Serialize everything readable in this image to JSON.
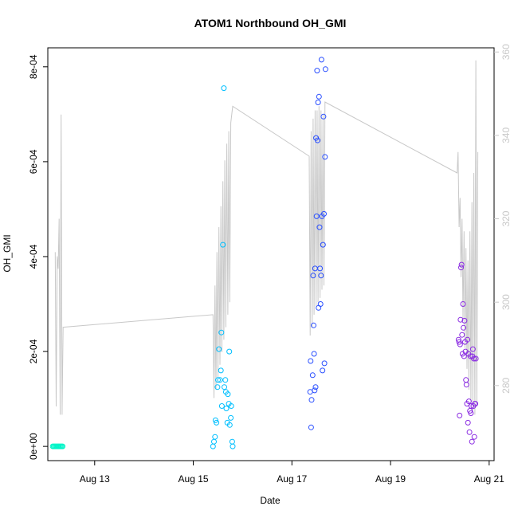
{
  "chart_data": {
    "type": "scatter",
    "title": "ATOM1 Northbound OH_GMI",
    "xlabel": "Date",
    "ylabel": "OH_GMI",
    "x_ticks": [
      {
        "day": 13,
        "label": "Aug 13"
      },
      {
        "day": 15,
        "label": "Aug 15"
      },
      {
        "day": 17,
        "label": "Aug 17"
      },
      {
        "day": 19,
        "label": "Aug 19"
      },
      {
        "day": 21,
        "label": "Aug 21"
      }
    ],
    "xlim": [
      12.05,
      21.1
    ],
    "ylim": [
      -3e-05,
      0.00084
    ],
    "y_ticks": [
      {
        "value": 0,
        "label": "0e+00"
      },
      {
        "value": 0.0002,
        "label": "2e-04"
      },
      {
        "value": 0.0004,
        "label": "4e-04"
      },
      {
        "value": 0.0006,
        "label": "6e-04"
      },
      {
        "value": 0.0008,
        "label": "8e-04"
      }
    ],
    "y2lim": [
      262,
      361
    ],
    "y2_ticks": [
      {
        "value": 280,
        "label": "280"
      },
      {
        "value": 300,
        "label": "300"
      },
      {
        "value": 320,
        "label": "320"
      },
      {
        "value": 340,
        "label": "340"
      },
      {
        "value": 360,
        "label": "360"
      }
    ],
    "secondary_line": {
      "color": "#c8c8c8",
      "points": [
        [
          12.2,
          312
        ],
        [
          12.22,
          275
        ],
        [
          12.24,
          311
        ],
        [
          12.26,
          308
        ],
        [
          12.28,
          320
        ],
        [
          12.3,
          273
        ],
        [
          12.32,
          345
        ],
        [
          12.34,
          273
        ],
        [
          12.36,
          294
        ],
        [
          15.4,
          297
        ],
        [
          15.42,
          277
        ],
        [
          15.44,
          304
        ],
        [
          15.46,
          279
        ],
        [
          15.48,
          312
        ],
        [
          15.5,
          282
        ],
        [
          15.52,
          318
        ],
        [
          15.54,
          285
        ],
        [
          15.56,
          323
        ],
        [
          15.58,
          288
        ],
        [
          15.6,
          329
        ],
        [
          15.62,
          291
        ],
        [
          15.64,
          334
        ],
        [
          15.66,
          294
        ],
        [
          15.68,
          338
        ],
        [
          15.7,
          297
        ],
        [
          15.72,
          341
        ],
        [
          15.74,
          300
        ],
        [
          15.76,
          343
        ],
        [
          15.78,
          345
        ],
        [
          15.8,
          347
        ],
        [
          17.35,
          335
        ],
        [
          17.37,
          292
        ],
        [
          17.39,
          341
        ],
        [
          17.41,
          294
        ],
        [
          17.43,
          344
        ],
        [
          17.45,
          297
        ],
        [
          17.47,
          346
        ],
        [
          17.49,
          299
        ],
        [
          17.51,
          346
        ],
        [
          17.53,
          300
        ],
        [
          17.55,
          347
        ],
        [
          17.57,
          301
        ],
        [
          17.59,
          346
        ],
        [
          17.61,
          303
        ],
        [
          17.63,
          345
        ],
        [
          17.65,
          304
        ],
        [
          17.67,
          348
        ],
        [
          20.35,
          331
        ],
        [
          20.37,
          336
        ],
        [
          20.39,
          318
        ],
        [
          20.41,
          325
        ],
        [
          20.43,
          306
        ],
        [
          20.45,
          320
        ],
        [
          20.47,
          296
        ],
        [
          20.49,
          317
        ],
        [
          20.51,
          289
        ],
        [
          20.53,
          313
        ],
        [
          20.55,
          284
        ],
        [
          20.57,
          310
        ],
        [
          20.59,
          279
        ],
        [
          20.61,
          317
        ],
        [
          20.63,
          276
        ],
        [
          20.65,
          324
        ],
        [
          20.67,
          274
        ],
        [
          20.69,
          331
        ],
        [
          20.71,
          273
        ],
        [
          20.73,
          358
        ],
        [
          20.75,
          275
        ],
        [
          20.77,
          336
        ]
      ]
    },
    "series": [
      {
        "color": "#00f5c8",
        "points": [
          [
            12.15,
            0
          ],
          [
            12.17,
            0
          ],
          [
            12.19,
            0
          ],
          [
            12.21,
            0
          ],
          [
            12.23,
            0
          ],
          [
            12.25,
            0
          ],
          [
            12.27,
            0
          ],
          [
            12.29,
            0
          ],
          [
            12.31,
            0
          ],
          [
            12.33,
            0
          ],
          [
            12.35,
            0
          ]
        ]
      },
      {
        "color": "#00bfff",
        "points": [
          [
            15.4,
            0
          ],
          [
            15.42,
            1e-05
          ],
          [
            15.44,
            2e-05
          ],
          [
            15.45,
            5.5e-05
          ],
          [
            15.47,
            5e-05
          ],
          [
            15.49,
            0.000125
          ],
          [
            15.5,
            0.00014
          ],
          [
            15.52,
            0.000205
          ],
          [
            15.54,
            0.00014
          ],
          [
            15.56,
            0.00016
          ],
          [
            15.57,
            0.00024
          ],
          [
            15.58,
            8.5e-05
          ],
          [
            15.6,
            0.000425
          ],
          [
            15.62,
            0.000755
          ],
          [
            15.63,
            0.000125
          ],
          [
            15.65,
            0.00014
          ],
          [
            15.66,
            0.000115
          ],
          [
            15.67,
            8e-05
          ],
          [
            15.69,
            5e-05
          ],
          [
            15.7,
            0.00011
          ],
          [
            15.72,
            9e-05
          ],
          [
            15.73,
            0.0002
          ],
          [
            15.74,
            4.5e-05
          ],
          [
            15.76,
            6e-05
          ],
          [
            15.77,
            8.5e-05
          ],
          [
            15.79,
            1e-05
          ],
          [
            15.8,
            0
          ]
        ]
      },
      {
        "color": "#2a4fff",
        "points": [
          [
            17.37,
            0.000115
          ],
          [
            17.38,
            0.00018
          ],
          [
            17.39,
            4e-05
          ],
          [
            17.4,
            9.8e-05
          ],
          [
            17.42,
            0.00015
          ],
          [
            17.43,
            0.00036
          ],
          [
            17.44,
            0.000255
          ],
          [
            17.45,
            0.000195
          ],
          [
            17.46,
            0.000118
          ],
          [
            17.47,
            0.000375
          ],
          [
            17.48,
            0.000125
          ],
          [
            17.49,
            0.00065
          ],
          [
            17.5,
            0.000485
          ],
          [
            17.51,
            0.000792
          ],
          [
            17.52,
            0.000645
          ],
          [
            17.53,
            0.000725
          ],
          [
            17.54,
            0.000292
          ],
          [
            17.55,
            0.000737
          ],
          [
            17.56,
            0.000462
          ],
          [
            17.57,
            0.000375
          ],
          [
            17.58,
            0.0003
          ],
          [
            17.59,
            0.00036
          ],
          [
            17.6,
            0.000815
          ],
          [
            17.61,
            0.000485
          ],
          [
            17.62,
            0.00016
          ],
          [
            17.63,
            0.000425
          ],
          [
            17.64,
            0.000695
          ],
          [
            17.65,
            0.00049
          ],
          [
            17.66,
            0.000175
          ],
          [
            17.67,
            0.00061
          ],
          [
            17.68,
            0.000795
          ]
        ]
      },
      {
        "color": "#8a2be2",
        "points": [
          [
            20.38,
            0.000225
          ],
          [
            20.39,
            0.00022
          ],
          [
            20.4,
            6.5e-05
          ],
          [
            20.41,
            0.000215
          ],
          [
            20.42,
            0.000267
          ],
          [
            20.43,
            0.000377
          ],
          [
            20.44,
            0.000383
          ],
          [
            20.45,
            0.000235
          ],
          [
            20.46,
            0.000195
          ],
          [
            20.47,
            0.0003
          ],
          [
            20.48,
            0.00025
          ],
          [
            20.49,
            0.00019
          ],
          [
            20.5,
            0.000265
          ],
          [
            20.51,
            0.00022
          ],
          [
            20.52,
            0.0002
          ],
          [
            20.53,
            0.00014
          ],
          [
            20.54,
            0.00013
          ],
          [
            20.55,
            9e-05
          ],
          [
            20.56,
            0.000225
          ],
          [
            20.57,
            5e-05
          ],
          [
            20.58,
            0.000195
          ],
          [
            20.59,
            9.5e-05
          ],
          [
            20.6,
            3e-05
          ],
          [
            20.61,
            7.5e-05
          ],
          [
            20.62,
            0.00019
          ],
          [
            20.63,
            7e-05
          ],
          [
            20.64,
            8.5e-05
          ],
          [
            20.65,
            1e-05
          ],
          [
            20.66,
            0.00019
          ],
          [
            20.67,
            0.000205
          ],
          [
            20.68,
            8.5e-05
          ],
          [
            20.69,
            0.000185
          ],
          [
            20.7,
            2e-05
          ],
          [
            20.71,
            9e-05
          ],
          [
            20.72,
            9e-05
          ],
          [
            20.73,
            0.000185
          ]
        ]
      }
    ],
    "grid": false,
    "legend": "none"
  }
}
